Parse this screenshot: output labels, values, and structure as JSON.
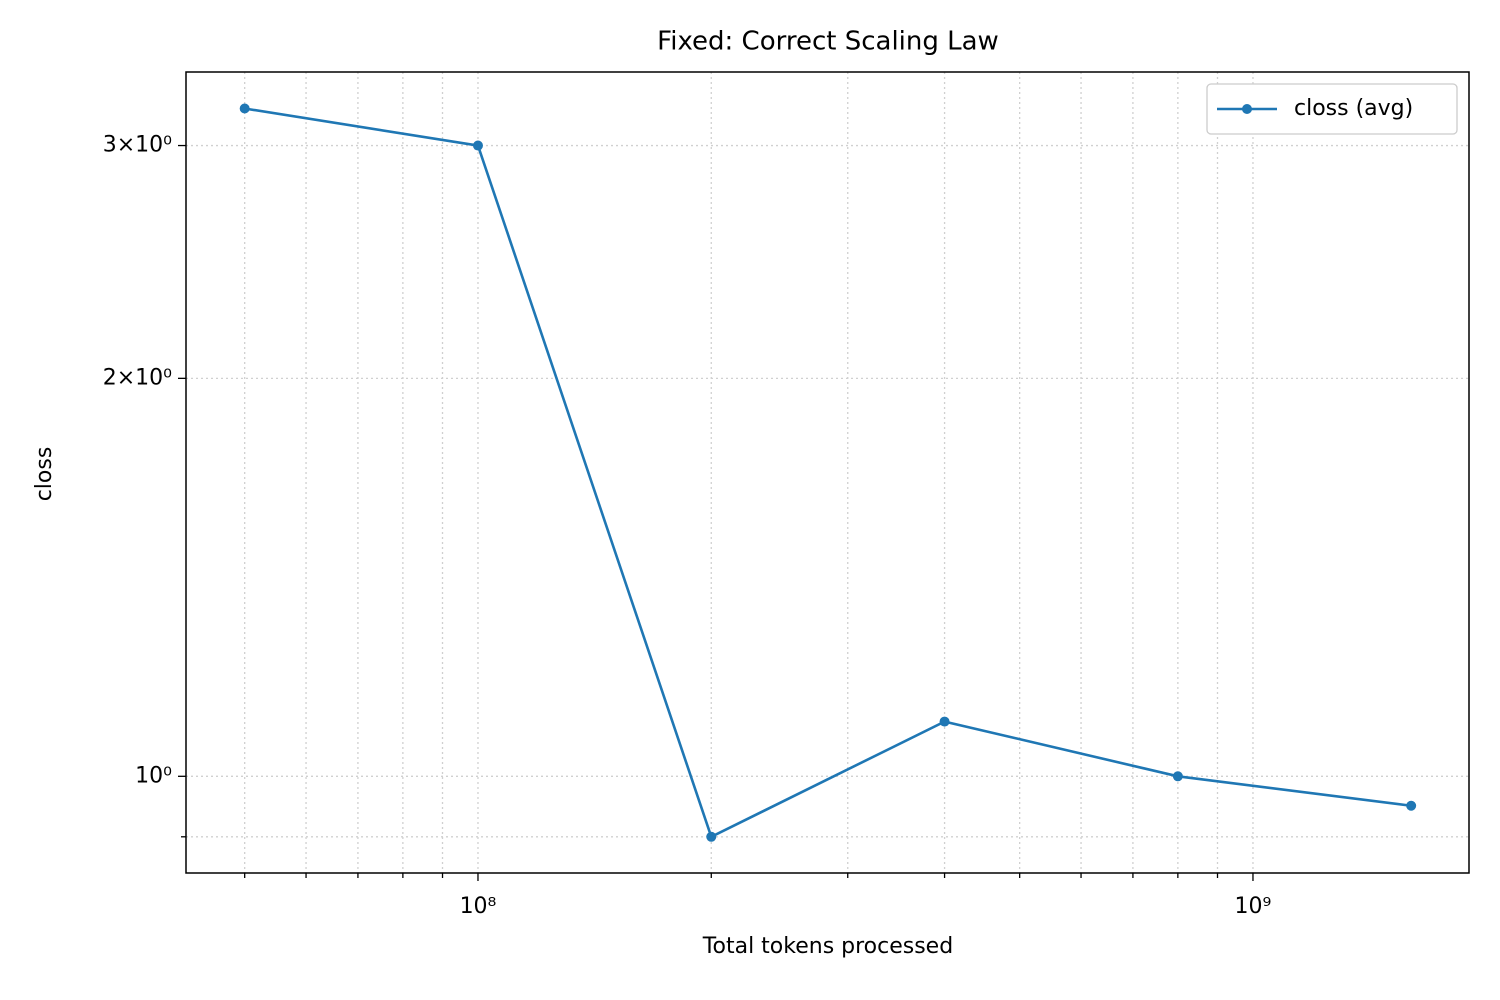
{
  "chart_data": {
    "type": "line",
    "title": "Fixed: Correct Scaling Law",
    "xlabel": "Total tokens processed",
    "ylabel": "closs",
    "x": [
      50000000,
      100000000,
      200000000,
      400000000,
      800000000,
      1600000000
    ],
    "series": [
      {
        "name": "closs (avg)",
        "color": "#1f77b4",
        "values": [
          3.2,
          3.0,
          0.9,
          1.1,
          1.0,
          0.95
        ]
      }
    ],
    "xscale": "log",
    "yscale": "log",
    "xlim": [
      42000000,
      1900000000
    ],
    "ylim": [
      0.845,
      3.41
    ],
    "xticks": [
      {
        "value": 100000000,
        "label": "10⁸"
      },
      {
        "value": 1000000000,
        "label": "10⁹"
      }
    ],
    "xminorticks": [
      50000000,
      60000000,
      70000000,
      80000000,
      90000000,
      200000000,
      300000000,
      400000000,
      500000000,
      600000000,
      700000000,
      800000000,
      900000000
    ],
    "yticks": [
      {
        "value": 1,
        "label": "10⁰"
      },
      {
        "value": 2,
        "label": "2×10⁰"
      },
      {
        "value": 3,
        "label": "3×10⁰"
      }
    ],
    "yminorticks": [
      0.9
    ],
    "grid": true,
    "legend": "upper right"
  }
}
